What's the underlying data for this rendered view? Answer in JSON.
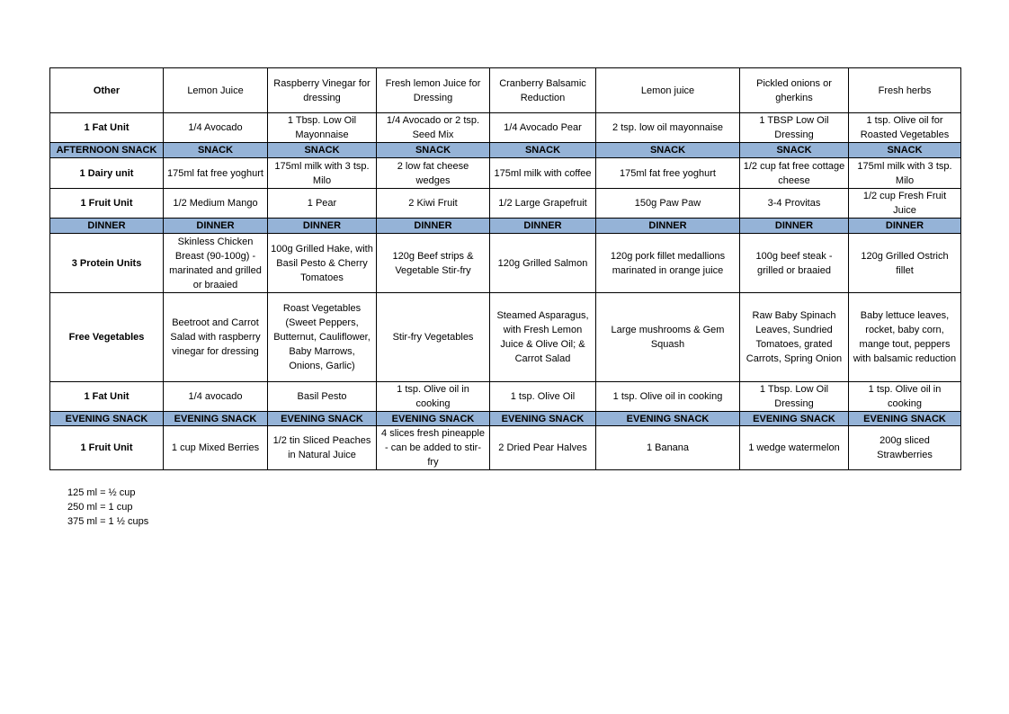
{
  "colors": {
    "section_band": "#95b3d7",
    "border": "#000000"
  },
  "table": {
    "rows": [
      {
        "type": "item",
        "cells": [
          "Other",
          "Lemon Juice",
          "Raspberry Vinegar for dressing",
          "Fresh lemon Juice for Dressing",
          "Cranberry Balsamic Reduction",
          "Lemon juice",
          "Pickled onions or gherkins",
          "Fresh herbs"
        ]
      },
      {
        "type": "item",
        "cells": [
          "1 Fat Unit",
          "1/4 Avocado",
          "1 Tbsp. Low Oil Mayonnaise",
          "1/4 Avocado or 2 tsp. Seed Mix",
          "1/4 Avocado Pear",
          "2 tsp. low oil mayonnaise",
          "1 TBSP Low Oil Dressing",
          "1 tsp. Olive oil for Roasted Vegetables"
        ]
      },
      {
        "type": "band",
        "cells": [
          "AFTERNOON SNACK",
          "SNACK",
          "SNACK",
          "SNACK",
          "SNACK",
          "SNACK",
          "SNACK",
          "SNACK"
        ]
      },
      {
        "type": "item",
        "cells": [
          "1 Dairy unit",
          "175ml fat free yoghurt",
          "175ml milk with 3 tsp. Milo",
          "2 low fat cheese wedges",
          "175ml milk with coffee",
          "175ml fat free yoghurt",
          "1/2 cup fat free cottage cheese",
          "175ml milk with 3 tsp. Milo"
        ]
      },
      {
        "type": "item",
        "cells": [
          "1 Fruit Unit",
          "1/2 Medium Mango",
          "1 Pear",
          "2 Kiwi Fruit",
          "1/2 Large Grapefruit",
          "150g Paw Paw",
          "3-4 Provitas",
          "1/2 cup Fresh Fruit Juice"
        ]
      },
      {
        "type": "band",
        "cells": [
          "DINNER",
          "DINNER",
          "DINNER",
          "DINNER",
          "DINNER",
          "DINNER",
          "DINNER",
          "DINNER"
        ]
      },
      {
        "type": "item",
        "cells": [
          "3 Protein Units",
          "Skinless Chicken Breast (90-100g) - marinated and grilled or braaied",
          "100g Grilled Hake, with Basil Pesto & Cherry Tomatoes",
          "120g Beef strips & Vegetable Stir-fry",
          "120g Grilled Salmon",
          "120g pork fillet medallions marinated in orange juice",
          "100g beef steak - grilled or braaied",
          "120g Grilled Ostrich fillet"
        ]
      },
      {
        "type": "item",
        "cells": [
          "Free Vegetables",
          "Beetroot and Carrot Salad with raspberry vinegar for dressing",
          "Roast Vegetables (Sweet Peppers, Butternut, Cauliflower, Baby Marrows, Onions, Garlic)",
          "Stir-fry Vegetables",
          "Steamed Asparagus, with Fresh Lemon Juice & Olive Oil; & Carrot Salad",
          "Large mushrooms & Gem Squash",
          "Raw Baby Spinach Leaves, Sundried Tomatoes, grated Carrots, Spring Onion",
          "Baby lettuce leaves, rocket, baby corn, mange tout, peppers with balsamic reduction"
        ]
      },
      {
        "type": "item",
        "cells": [
          "1 Fat Unit",
          "1/4 avocado",
          "Basil Pesto",
          "1 tsp. Olive oil in cooking",
          "1 tsp. Olive Oil",
          "1 tsp. Olive oil in cooking",
          "1 Tbsp. Low Oil Dressing",
          "1 tsp. Olive oil in cooking"
        ]
      },
      {
        "type": "band",
        "cells": [
          "EVENING SNACK",
          "EVENING SNACK",
          "EVENING SNACK",
          "EVENING SNACK",
          "EVENING SNACK",
          "EVENING SNACK",
          "EVENING SNACK",
          "EVENING SNACK"
        ]
      },
      {
        "type": "item",
        "cells": [
          "1 Fruit Unit",
          "1 cup Mixed Berries",
          "1/2 tin Sliced Peaches in Natural Juice",
          "4 slices fresh pineapple - can be added to stir-fry",
          "2 Dried Pear Halves",
          "1 Banana",
          "1 wedge watermelon",
          "200g sliced Strawberries"
        ]
      }
    ]
  },
  "notes": [
    "125 ml = ½ cup",
    "250 ml = 1 cup",
    "375 ml = 1 ½ cups"
  ]
}
